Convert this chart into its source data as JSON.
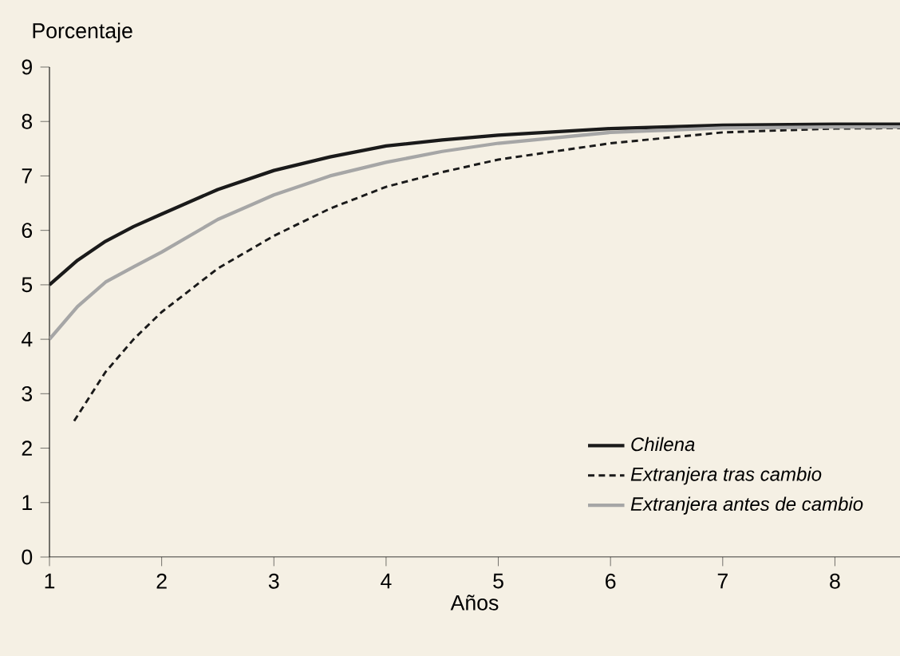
{
  "chart_data": {
    "type": "line",
    "ylabel": "Porcentaje",
    "xlabel": "Años",
    "xlim": [
      1,
      8.58
    ],
    "ylim": [
      0,
      9
    ],
    "xticks": [
      1,
      2,
      3,
      4,
      5,
      6,
      7,
      8
    ],
    "yticks": [
      0,
      1,
      2,
      3,
      4,
      5,
      6,
      7,
      8,
      9
    ],
    "legend": "bottom right",
    "grid": false,
    "marker": "none",
    "series": [
      {
        "name": "Chilena",
        "color": "#1a1a1a",
        "line_style": "solid",
        "x": [
          1,
          1.25,
          1.5,
          1.75,
          2,
          2.5,
          3,
          3.5,
          4,
          4.5,
          5,
          6,
          7,
          8,
          8.58
        ],
        "values": [
          5.0,
          5.45,
          5.8,
          6.07,
          6.3,
          6.75,
          7.1,
          7.35,
          7.55,
          7.66,
          7.75,
          7.87,
          7.93,
          7.95,
          7.95
        ]
      },
      {
        "name": "Extranjera tras cambio",
        "color": "#1a1a1a",
        "line_style": "dashed",
        "x": [
          1.22,
          1.5,
          1.75,
          2,
          2.5,
          3,
          3.5,
          4,
          4.5,
          5,
          6,
          7,
          8,
          8.58
        ],
        "values": [
          2.5,
          3.4,
          4.0,
          4.5,
          5.3,
          5.9,
          6.4,
          6.8,
          7.07,
          7.3,
          7.6,
          7.8,
          7.87,
          7.88
        ]
      },
      {
        "name": "Extranjera antes de cambio",
        "color": "#a6a6a6",
        "line_style": "solid",
        "x": [
          1,
          1.25,
          1.5,
          1.75,
          2,
          2.5,
          3,
          3.5,
          4,
          4.5,
          5,
          6,
          7,
          8,
          8.58
        ],
        "values": [
          4.0,
          4.6,
          5.05,
          5.33,
          5.6,
          6.2,
          6.65,
          7.0,
          7.25,
          7.45,
          7.6,
          7.8,
          7.88,
          7.9,
          7.9
        ]
      }
    ]
  }
}
